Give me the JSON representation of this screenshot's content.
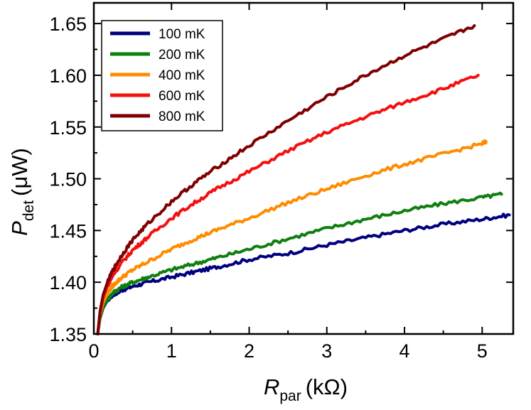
{
  "chart_data": {
    "type": "line",
    "title": "",
    "xlabel": "R_par (kΩ)",
    "ylabel": "P_det (μW)",
    "xlabel_parts": {
      "symbol": "R",
      "subscript": "par",
      "unit": "(kΩ)"
    },
    "ylabel_parts": {
      "symbol": "P",
      "subscript": "det",
      "unit": "(μW)"
    },
    "xlim": [
      0,
      5.4
    ],
    "ylim": [
      1.35,
      1.67
    ],
    "xticks": [
      0,
      1,
      2,
      3,
      4,
      5
    ],
    "xtick_labels": [
      "0",
      "1",
      "2",
      "3",
      "4",
      "5"
    ],
    "yticks": [
      1.35,
      1.4,
      1.45,
      1.5,
      1.55,
      1.6,
      1.65
    ],
    "ytick_labels": [
      "1.35",
      "1.40",
      "1.45",
      "1.50",
      "1.55",
      "1.60",
      "1.65"
    ],
    "grid": false,
    "legend_position": "top-left",
    "series": [
      {
        "name": "100 mK",
        "color": "#00007F",
        "x": [
          0.05,
          0.08,
          0.12,
          0.18,
          0.25,
          0.35,
          0.5,
          0.7,
          1.0,
          1.3,
          1.6,
          2.0,
          2.5,
          3.0,
          3.5,
          4.0,
          4.5,
          5.0,
          5.35
        ],
        "y": [
          1.35,
          1.365,
          1.375,
          1.383,
          1.388,
          1.392,
          1.396,
          1.4,
          1.405,
          1.41,
          1.415,
          1.422,
          1.428,
          1.436,
          1.443,
          1.45,
          1.456,
          1.461,
          1.465
        ]
      },
      {
        "name": "200 mK",
        "color": "#107F10",
        "x": [
          0.05,
          0.08,
          0.12,
          0.18,
          0.25,
          0.35,
          0.5,
          0.7,
          1.0,
          1.3,
          1.6,
          2.0,
          2.5,
          3.0,
          3.5,
          4.0,
          4.5,
          5.0,
          5.25
        ],
        "y": [
          1.35,
          1.366,
          1.376,
          1.384,
          1.39,
          1.395,
          1.4,
          1.405,
          1.412,
          1.418,
          1.424,
          1.432,
          1.442,
          1.452,
          1.461,
          1.469,
          1.476,
          1.482,
          1.485
        ]
      },
      {
        "name": "400 mK",
        "color": "#FF8C00",
        "x": [
          0.05,
          0.08,
          0.12,
          0.18,
          0.25,
          0.35,
          0.5,
          0.7,
          1.0,
          1.3,
          1.6,
          2.0,
          2.5,
          3.0,
          3.5,
          4.0,
          4.5,
          5.0,
          5.05
        ],
        "y": [
          1.35,
          1.368,
          1.38,
          1.39,
          1.397,
          1.404,
          1.412,
          1.42,
          1.432,
          1.442,
          1.451,
          1.462,
          1.477,
          1.49,
          1.503,
          1.514,
          1.524,
          1.534,
          1.536
        ]
      },
      {
        "name": "600 mK",
        "color": "#F51010",
        "x": [
          0.05,
          0.08,
          0.12,
          0.18,
          0.25,
          0.35,
          0.5,
          0.7,
          1.0,
          1.3,
          1.6,
          2.0,
          2.5,
          3.0,
          3.5,
          4.0,
          4.5,
          4.95
        ],
        "y": [
          1.35,
          1.37,
          1.385,
          1.397,
          1.407,
          1.418,
          1.431,
          1.444,
          1.462,
          1.477,
          1.491,
          1.507,
          1.527,
          1.545,
          1.56,
          1.574,
          1.587,
          1.6
        ]
      },
      {
        "name": "800 mK",
        "color": "#7F0000",
        "x": [
          0.05,
          0.08,
          0.12,
          0.18,
          0.25,
          0.35,
          0.5,
          0.7,
          1.0,
          1.3,
          1.6,
          2.0,
          2.5,
          3.0,
          3.5,
          4.0,
          4.5,
          4.9
        ],
        "y": [
          1.35,
          1.372,
          1.388,
          1.401,
          1.412,
          1.425,
          1.441,
          1.457,
          1.478,
          1.496,
          1.512,
          1.532,
          1.556,
          1.579,
          1.6,
          1.619,
          1.635,
          1.648
        ]
      }
    ]
  }
}
